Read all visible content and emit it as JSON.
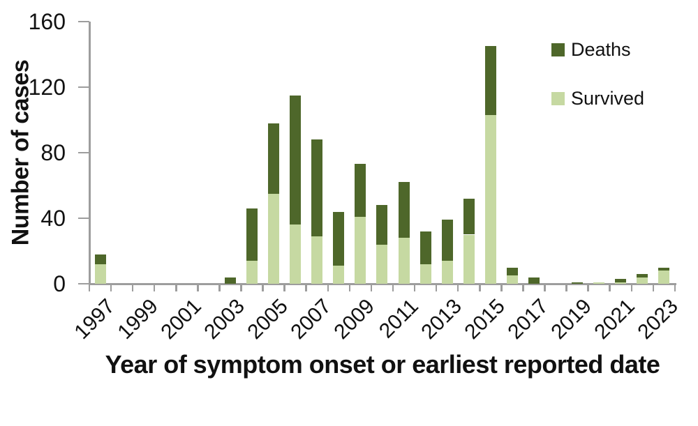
{
  "chart_data": {
    "type": "bar",
    "stacked": true,
    "xlabel": "Year of symptom onset or earliest reported date",
    "ylabel": "Number of cases",
    "categories": [
      "1997",
      "1998",
      "1999",
      "2000",
      "2001",
      "2002",
      "2003",
      "2004",
      "2005",
      "2006",
      "2007",
      "2008",
      "2009",
      "2010",
      "2011",
      "2012",
      "2013",
      "2014",
      "2015",
      "2016",
      "2017",
      "2018",
      "2019",
      "2020",
      "2021",
      "2022",
      "2023"
    ],
    "x_tick_labels": [
      "1997",
      "1999",
      "2001",
      "2003",
      "2005",
      "2007",
      "2009",
      "2011",
      "2013",
      "2015",
      "2017",
      "2019",
      "2021",
      "2023"
    ],
    "y_ticks": [
      0,
      40,
      80,
      120,
      160
    ],
    "ylim": [
      0,
      160
    ],
    "grid": false,
    "legend_position": "top-right",
    "series": [
      {
        "name": "Survived",
        "color": "#C6D9A2",
        "values": [
          12,
          0,
          0,
          0,
          0,
          0,
          0,
          14,
          55,
          36,
          29,
          11,
          41,
          24,
          28,
          12,
          14,
          30,
          103,
          5,
          0,
          0,
          0,
          1,
          1,
          4,
          8
        ]
      },
      {
        "name": "Deaths",
        "color": "#4E672A",
        "values": [
          6,
          0,
          0,
          0,
          0,
          0,
          4,
          32,
          43,
          79,
          59,
          33,
          32,
          24,
          34,
          20,
          25,
          22,
          42,
          5,
          4,
          0,
          1,
          0,
          2,
          2,
          2
        ]
      }
    ],
    "legend": [
      {
        "label": "Deaths",
        "color": "#4E672A"
      },
      {
        "label": "Survived",
        "color": "#C6D9A2"
      }
    ],
    "axis_color": "#9D9D9D",
    "text_color": "#111111"
  }
}
